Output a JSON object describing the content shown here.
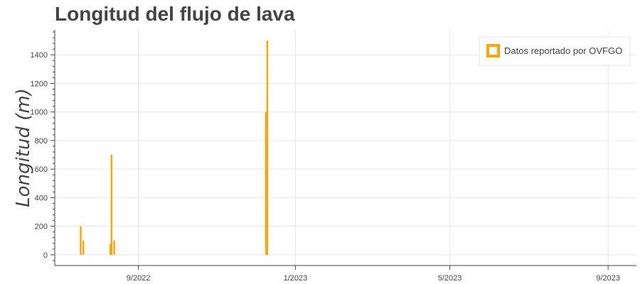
{
  "chart_data": {
    "type": "bar",
    "title": "Longitud del flujo de lava",
    "ylabel": "Longitud (m)",
    "xlabel": "",
    "ylim": [
      -75,
      1575
    ],
    "xlim": [
      "2022-06-28",
      "2023-09-23"
    ],
    "yticks": [
      0,
      200,
      400,
      600,
      800,
      1000,
      1200,
      1400
    ],
    "xticks": [
      {
        "date": "2022-09-01",
        "label": "9/2022"
      },
      {
        "date": "2023-01-01",
        "label": "1/2023"
      },
      {
        "date": "2023-05-01",
        "label": "5/2023"
      },
      {
        "date": "2023-09-01",
        "label": "9/2023"
      }
    ],
    "grid": true,
    "legend_position": "top-right",
    "bar_color": "#FFA500",
    "series": [
      {
        "name": "Datos reportado por OVFGO",
        "points": [
          {
            "date": "2022-07-18",
            "value": 200
          },
          {
            "date": "2022-07-20",
            "value": 100
          },
          {
            "date": "2022-08-10",
            "value": 75
          },
          {
            "date": "2022-08-11",
            "value": 700
          },
          {
            "date": "2022-08-13",
            "value": 100
          },
          {
            "date": "2022-12-09",
            "value": 1000
          },
          {
            "date": "2022-12-10",
            "value": 1500
          }
        ]
      }
    ]
  }
}
